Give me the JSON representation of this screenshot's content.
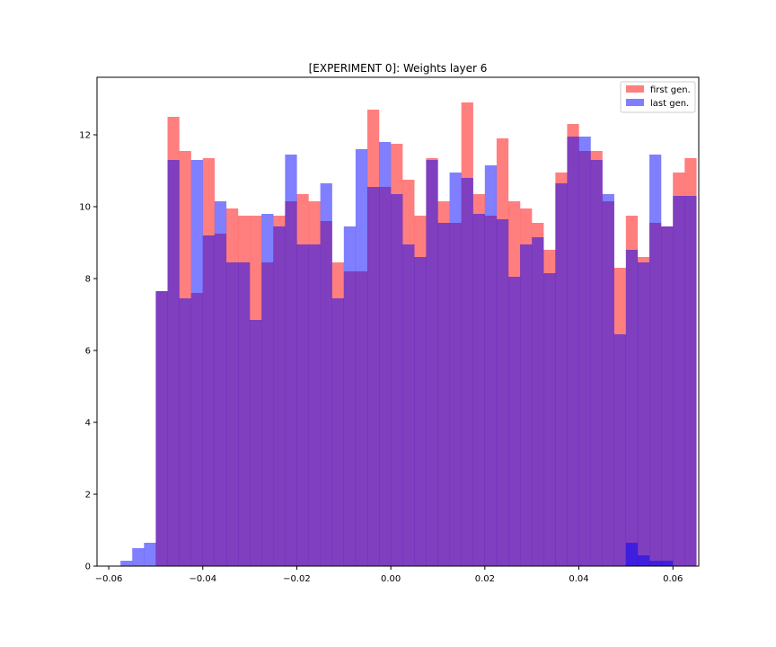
{
  "chart_data": {
    "type": "bar",
    "title": "[EXPERIMENT 0]: Weights layer 6",
    "xlabel": "",
    "ylabel": "",
    "xlim": [
      -0.0625,
      0.0655
    ],
    "ylim": [
      0,
      13.6
    ],
    "x_ticks": [
      -0.06,
      -0.04,
      -0.02,
      0.0,
      0.02,
      0.04,
      0.06
    ],
    "x_tick_labels": [
      "−0.06",
      "−0.04",
      "−0.02",
      "0.00",
      "0.02",
      "0.04",
      "0.06"
    ],
    "y_ticks": [
      0,
      2,
      4,
      6,
      8,
      10,
      12
    ],
    "y_tick_labels": [
      "0",
      "2",
      "4",
      "6",
      "8",
      "10",
      "12"
    ],
    "grid": false,
    "legend_position": "top-right",
    "series": [
      {
        "name": "first gen.",
        "color": "#ff0000",
        "alpha": 0.5,
        "bin_start": -0.05,
        "bin_width": 0.0025,
        "values": [
          7.65,
          12.5,
          11.55,
          7.6,
          11.35,
          9.25,
          9.95,
          9.75,
          9.75,
          8.45,
          9.75,
          10.15,
          10.35,
          10.15,
          9.6,
          8.45,
          8.2,
          8.2,
          12.7,
          10.55,
          11.75,
          10.75,
          9.75,
          11.35,
          10.15,
          9.55,
          12.9,
          10.35,
          9.75,
          11.9,
          10.15,
          9.95,
          9.55,
          8.8,
          10.95,
          12.3,
          11.55,
          11.55,
          10.15,
          8.3,
          9.75,
          8.6,
          9.55,
          9.45,
          10.95,
          11.35
        ],
        "extra_bins": []
      },
      {
        "name": "last gen.",
        "color": "#0000ff",
        "alpha": 0.5,
        "bin_start": -0.05,
        "bin_width": 0.0025,
        "values": [
          7.65,
          11.3,
          7.45,
          11.3,
          9.2,
          10.15,
          8.45,
          8.45,
          6.85,
          9.8,
          9.45,
          11.45,
          8.95,
          8.95,
          10.65,
          7.45,
          9.45,
          11.6,
          10.55,
          11.8,
          10.35,
          8.95,
          8.6,
          11.3,
          9.55,
          10.95,
          10.8,
          9.8,
          11.15,
          9.65,
          8.05,
          8.95,
          9.15,
          8.15,
          10.65,
          11.95,
          11.95,
          11.3,
          10.35,
          6.45,
          8.8,
          8.45,
          11.45,
          9.45,
          10.3,
          10.3
        ],
        "extra_bins": [
          {
            "x": -0.0575,
            "value": 0.15
          },
          {
            "x": -0.055,
            "value": 0.5
          },
          {
            "x": -0.0525,
            "value": 0.65
          },
          {
            "x": 0.05,
            "value": 0.65
          },
          {
            "x": 0.0525,
            "value": 0.3
          },
          {
            "x": 0.055,
            "value": 0.15
          },
          {
            "x": 0.0575,
            "value": 0.15
          }
        ]
      }
    ]
  }
}
